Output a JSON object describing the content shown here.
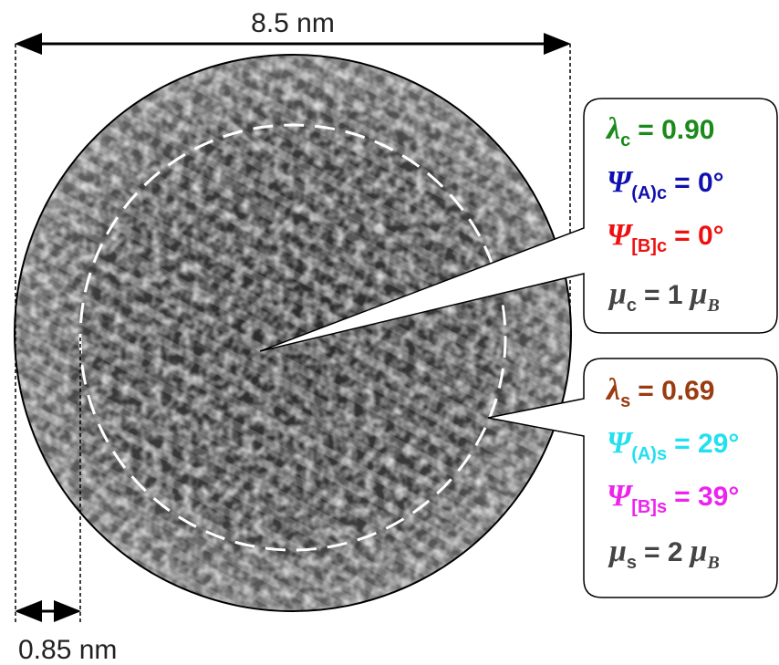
{
  "dimensions": {
    "diameter": "8.5 nm",
    "shell_thickness": "0.85 nm"
  },
  "core_callout": {
    "lines": [
      {
        "symbol": "λ",
        "subscript": "c",
        "text": "= 0.90"
      },
      {
        "symbol": "Ψ",
        "subscript": "(A)c",
        "text": "= 0°"
      },
      {
        "symbol": "Ψ",
        "subscript": "[B]c",
        "text": "= 0°"
      },
      {
        "symbol": "μ",
        "subscript": "c",
        "text": "= 1",
        "unit_symbol": "μ",
        "unit_subscript": "B"
      }
    ]
  },
  "shell_callout": {
    "lines": [
      {
        "symbol": "λ",
        "subscript": "s",
        "text": "= 0.69"
      },
      {
        "symbol": "Ψ",
        "subscript": "(A)s",
        "text": "= 29°"
      },
      {
        "symbol": "Ψ",
        "subscript": "[B]s",
        "text": "= 39°"
      },
      {
        "symbol": "μ",
        "subscript": "s",
        "text": "= 2",
        "unit_symbol": "μ",
        "unit_subscript": "B"
      }
    ]
  }
}
